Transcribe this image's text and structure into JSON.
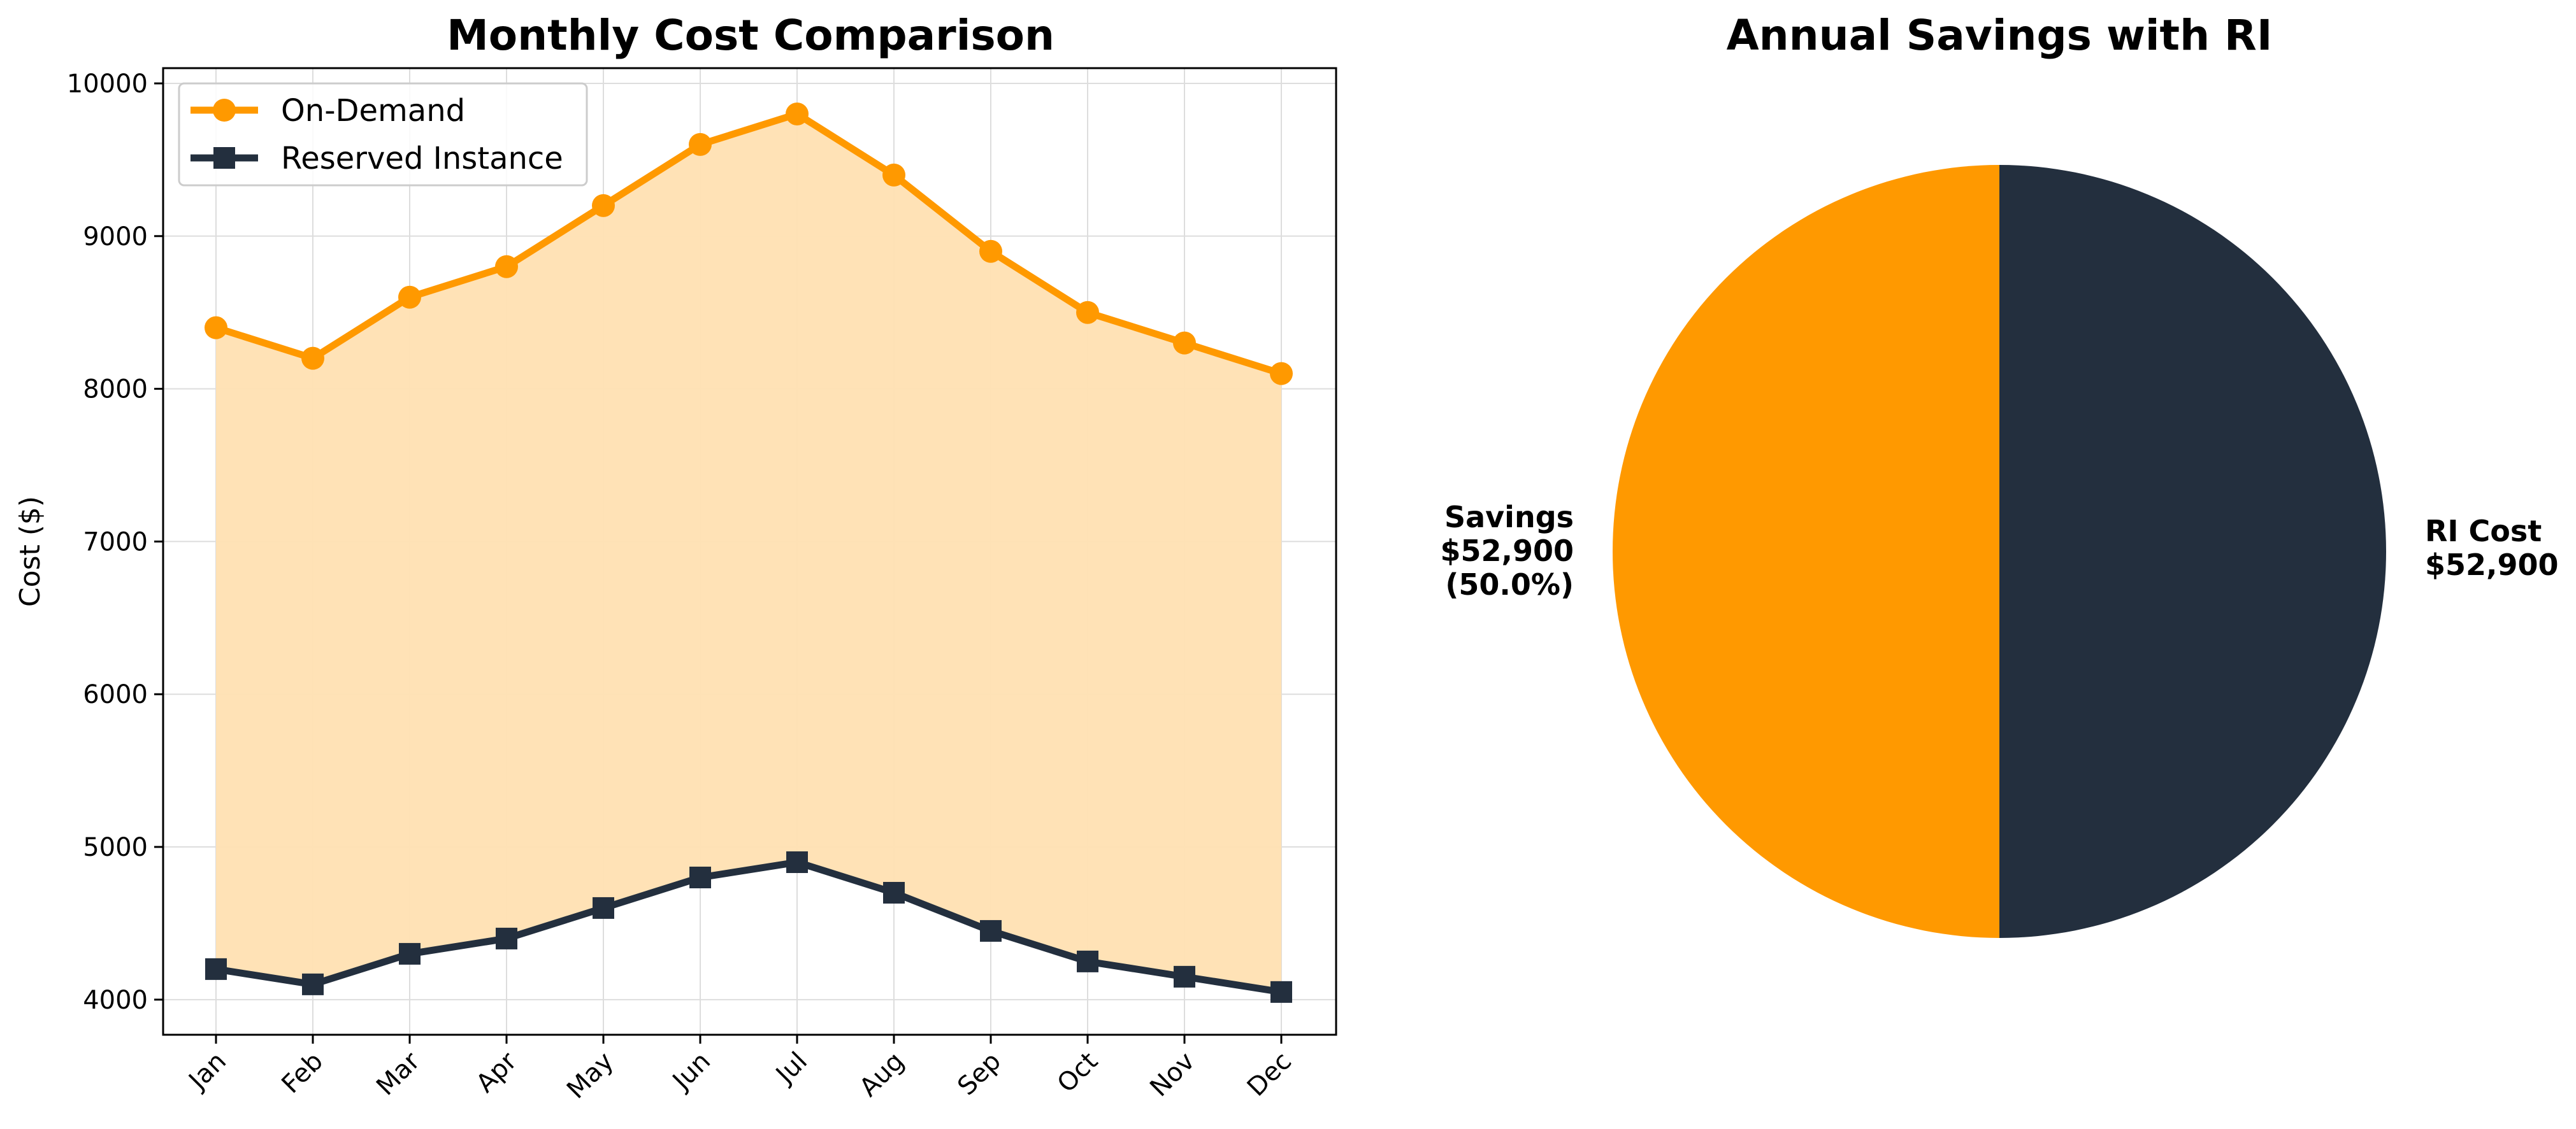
{
  "colors": {
    "on_demand": "#FF9900",
    "reserved": "#232F3E",
    "fill": "#FFE0B2",
    "grid": "#dddddd",
    "axis": "#000000"
  },
  "chart_data": [
    {
      "type": "line",
      "title": "Monthly Cost Comparison",
      "xlabel": "",
      "ylabel": "Cost ($)",
      "categories": [
        "Jan",
        "Feb",
        "Mar",
        "Apr",
        "May",
        "Jun",
        "Jul",
        "Aug",
        "Sep",
        "Oct",
        "Nov",
        "Dec"
      ],
      "ylim": [
        3770,
        10100
      ],
      "yticks": [
        4000,
        5000,
        6000,
        7000,
        8000,
        9000,
        10000
      ],
      "grid": true,
      "legend_position": "top-left",
      "fill_between": true,
      "series": [
        {
          "name": "On-Demand",
          "marker": "circle",
          "color": "#FF9900",
          "values": [
            8400,
            8200,
            8600,
            8800,
            9200,
            9600,
            9800,
            9400,
            8900,
            8500,
            8300,
            8100
          ]
        },
        {
          "name": "Reserved Instance",
          "marker": "square",
          "color": "#232F3E",
          "values": [
            4200,
            4100,
            4300,
            4400,
            4600,
            4800,
            4900,
            4700,
            4450,
            4250,
            4150,
            4050
          ]
        }
      ]
    },
    {
      "type": "pie",
      "title": "Annual Savings with RI",
      "slices": [
        {
          "label": "Savings",
          "value": 52900,
          "value_label": "$52,900",
          "percent_label": "(50.0%)",
          "color": "#FF9900",
          "side": "left"
        },
        {
          "label": "RI Cost",
          "value": 52900,
          "value_label": "$52,900",
          "percent_label": "",
          "color": "#232F3E",
          "side": "right"
        }
      ]
    }
  ]
}
